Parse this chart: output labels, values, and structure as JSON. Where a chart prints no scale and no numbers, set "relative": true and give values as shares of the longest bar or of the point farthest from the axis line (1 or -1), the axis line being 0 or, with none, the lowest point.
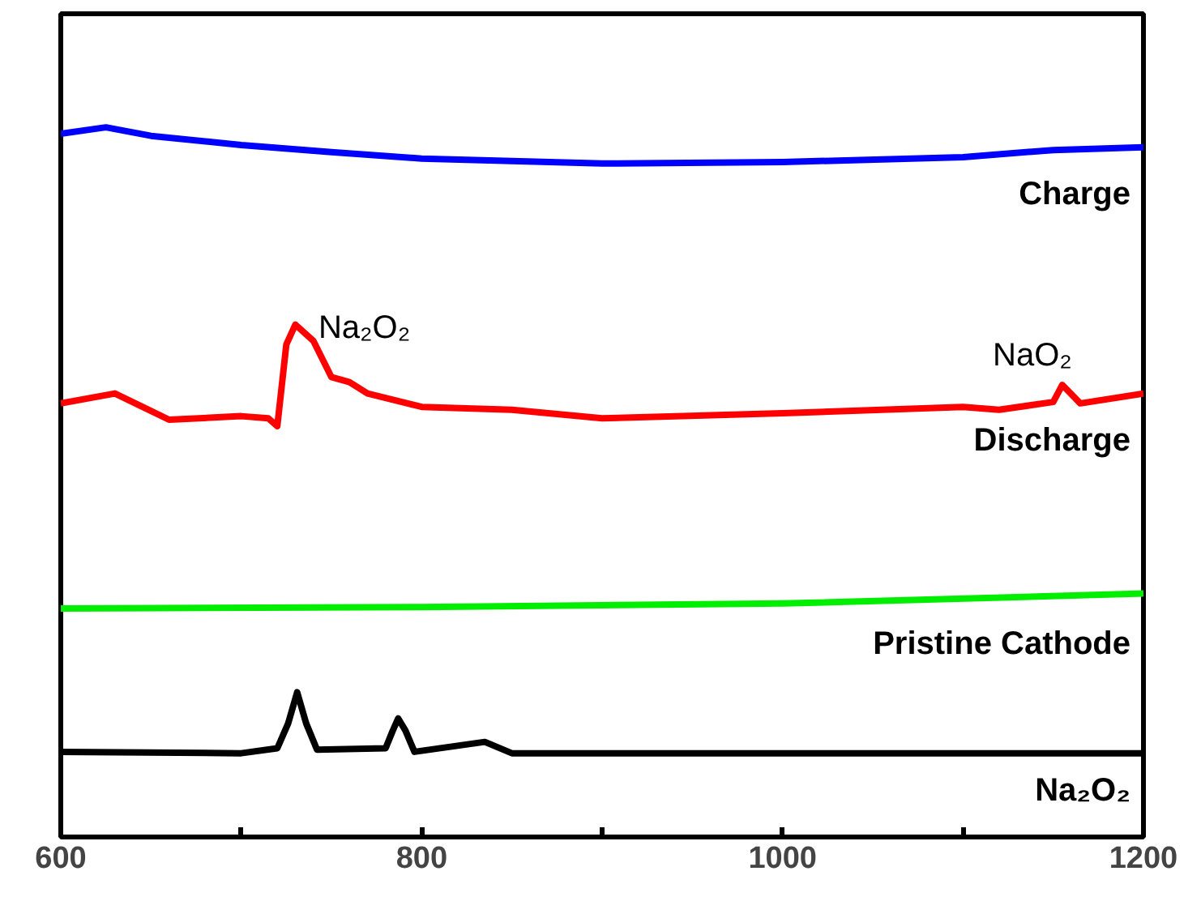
{
  "chart_data": {
    "type": "line",
    "relative": true,
    "xlim": [
      600,
      1200
    ],
    "xticks": [
      600,
      {
        "value": 700,
        "label": null
      },
      800,
      {
        "value": 900,
        "label": null
      },
      1000,
      {
        "value": 1100,
        "label": null
      },
      1200
    ],
    "grid": false,
    "annotations": [
      {
        "text": "Na₂O₂",
        "x": 732,
        "y": 0.722
      },
      {
        "text": "NaO₂",
        "x": 1155,
        "y": 0.637
      }
    ],
    "series": [
      {
        "name": "Charge",
        "color": "#0000ff",
        "x": [
          600,
          625,
          650,
          700,
          750,
          800,
          900,
          1000,
          1100,
          1150,
          1200
        ],
        "values": [
          0.991,
          1.0,
          0.988,
          0.975,
          0.965,
          0.956,
          0.949,
          0.951,
          0.958,
          0.968,
          0.972
        ]
      },
      {
        "name": "Discharge",
        "color": "#ff0000",
        "x": [
          600,
          630,
          660,
          700,
          715,
          720,
          725,
          730,
          740,
          750,
          760,
          770,
          800,
          850,
          900,
          1000,
          1100,
          1120,
          1150,
          1155,
          1165,
          1200
        ],
        "values": [
          0.611,
          0.625,
          0.588,
          0.593,
          0.59,
          0.579,
          0.694,
          0.722,
          0.699,
          0.648,
          0.641,
          0.625,
          0.606,
          0.602,
          0.59,
          0.597,
          0.606,
          0.602,
          0.613,
          0.637,
          0.611,
          0.625
        ]
      },
      {
        "name": "Pristine Cathode",
        "color": "#00ee00",
        "x": [
          600,
          800,
          1000,
          1200
        ],
        "values": [
          0.322,
          0.324,
          0.329,
          0.343
        ]
      },
      {
        "name": "Na₂O₂",
        "color": "#000000",
        "x": [
          600,
          700,
          720,
          726,
          731,
          736,
          742,
          780,
          784,
          787,
          791,
          796,
          835,
          850,
          1000,
          1200
        ],
        "values": [
          0.12,
          0.118,
          0.125,
          0.16,
          0.204,
          0.16,
          0.123,
          0.125,
          0.15,
          0.167,
          0.15,
          0.12,
          0.134,
          0.118,
          0.118,
          0.118
        ]
      }
    ]
  }
}
